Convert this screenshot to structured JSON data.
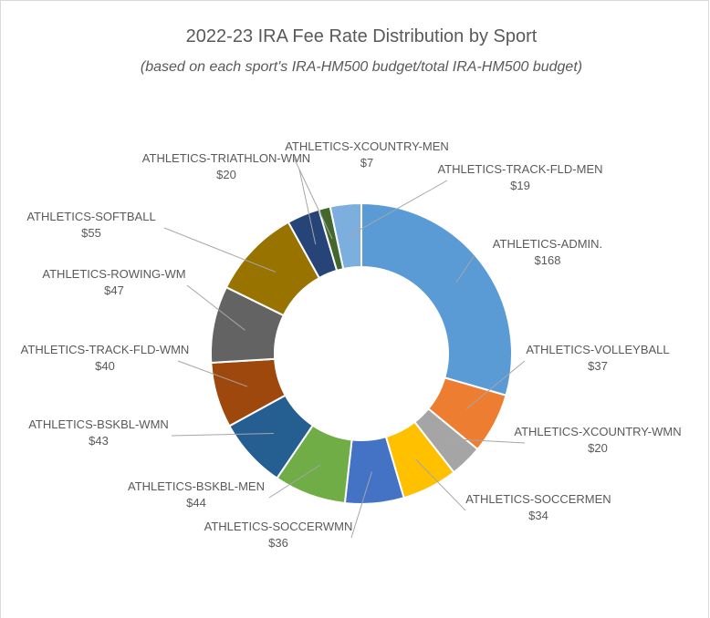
{
  "chart_data": {
    "type": "donut",
    "title": "2022-23 IRA Fee Rate Distribution by Sport",
    "subtitle": "(based on each sport's IRA-HM500 budget/total IRA-HM500 budget)",
    "categories": [
      "ATHLETICS-ADMIN.",
      "ATHLETICS-VOLLEYBALL",
      "ATHLETICS-XCOUNTRY-WMN",
      "ATHLETICS-SOCCERMEN",
      "ATHLETICS-SOCCERWMN",
      "ATHLETICS-BSKBL-MEN",
      "ATHLETICS-BSKBL-WMN",
      "ATHLETICS-TRACK-FLD-WMN",
      "ATHLETICS-ROWING-WM",
      "ATHLETICS-SOFTBALL",
      "ATHLETICS-TRIATHLON-WMN",
      "ATHLETICS-XCOUNTRY-MEN",
      "ATHLETICS-TRACK-FLD-MEN"
    ],
    "values": [
      168,
      37,
      20,
      34,
      36,
      44,
      43,
      40,
      47,
      55,
      20,
      7,
      19
    ],
    "value_labels": [
      "$168",
      "$37",
      "$20",
      "$34",
      "$36",
      "$44",
      "$43",
      "$40",
      "$47",
      "$55",
      "$20",
      "$7",
      "$19"
    ],
    "colors": [
      "#5b9bd5",
      "#ed7d31",
      "#a5a5a5",
      "#ffc000",
      "#4472c4",
      "#70ad47",
      "#255e91",
      "#9e480e",
      "#636363",
      "#997300",
      "#264478",
      "#43682b",
      "#7cafdd"
    ]
  }
}
